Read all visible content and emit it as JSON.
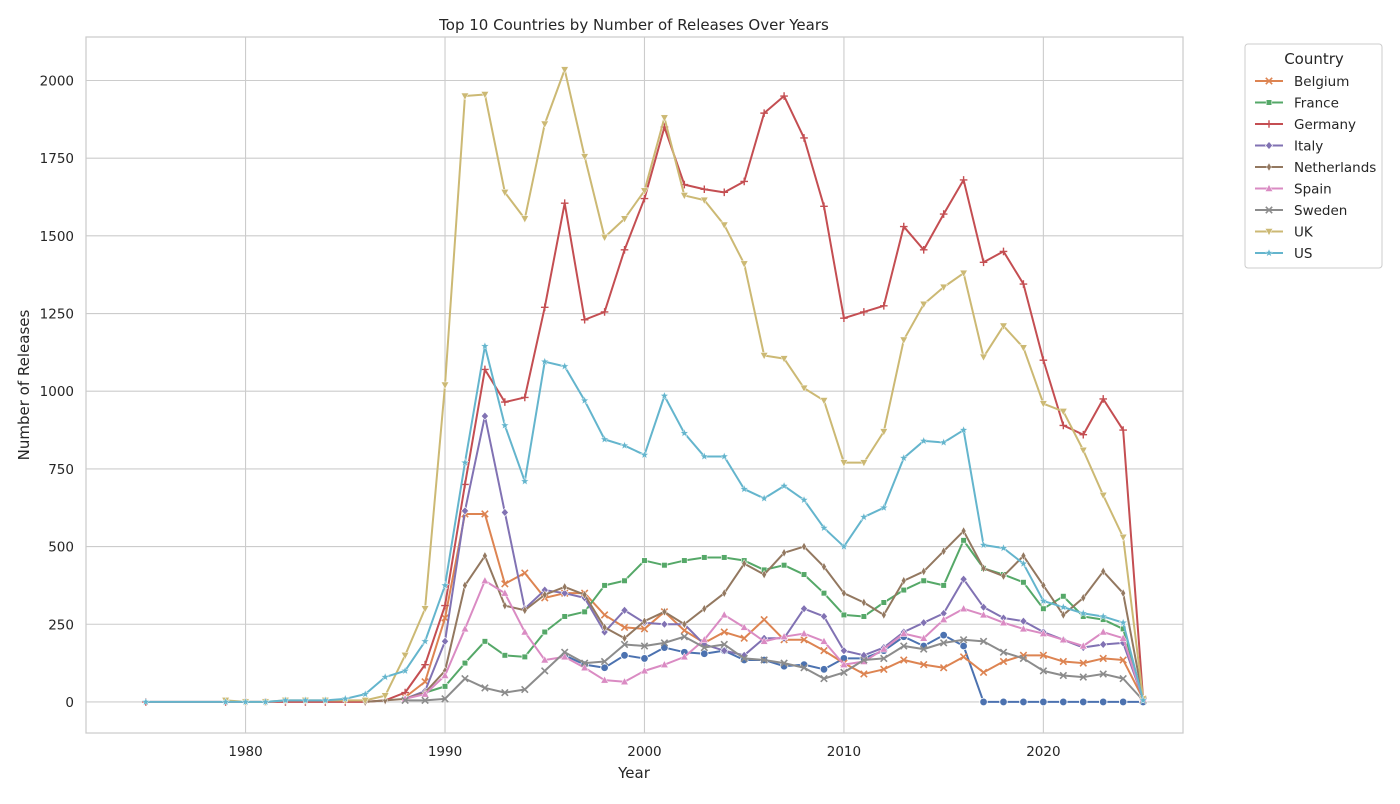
{
  "chart_data": {
    "type": "line",
    "title": "Top 10 Countries by Number of Releases Over Years",
    "xlabel": "Year",
    "ylabel": "Number of Releases",
    "xlim": [
      1972,
      2027
    ],
    "ylim": [
      -100,
      2140
    ],
    "xticks": [
      "1980",
      "1990",
      "2000",
      "2010",
      "2020"
    ],
    "yticks": [
      "0",
      "250",
      "500",
      "750",
      "1000",
      "1250",
      "1500",
      "1750",
      "2000"
    ],
    "grid": true,
    "legend_title": "Country",
    "legend_position": "outside-top-right",
    "series": [
      {
        "name": "",
        "color": "#4c72b0",
        "marker": "circle",
        "x": [
          1996,
          1997,
          1998,
          1999,
          2000,
          2001,
          2002,
          2003,
          2004,
          2005,
          2006,
          2007,
          2008,
          2009,
          2010,
          2011,
          2012,
          2013,
          2014,
          2015,
          2016,
          2017,
          2018,
          2019,
          2020,
          2021,
          2022,
          2023,
          2024,
          2025
        ],
        "values": [
          150,
          120,
          110,
          150,
          140,
          175,
          160,
          155,
          165,
          135,
          135,
          115,
          120,
          105,
          140,
          140,
          165,
          210,
          180,
          215,
          180,
          0,
          0,
          0,
          0,
          0,
          0,
          0,
          0,
          0
        ]
      },
      {
        "name": "Belgium",
        "color": "#dd8452",
        "marker": "x",
        "x": [
          1988,
          1989,
          1990,
          1991,
          1992,
          1993,
          1994,
          1995,
          1996,
          1997,
          1998,
          1999,
          2000,
          2001,
          2002,
          2003,
          2004,
          2005,
          2006,
          2007,
          2008,
          2009,
          2010,
          2011,
          2012,
          2013,
          2014,
          2015,
          2016,
          2017,
          2018,
          2019,
          2020,
          2021,
          2022,
          2023,
          2024,
          2025
        ],
        "values": [
          15,
          65,
          270,
          605,
          605,
          380,
          415,
          335,
          350,
          350,
          280,
          240,
          235,
          290,
          230,
          190,
          225,
          205,
          265,
          200,
          200,
          165,
          125,
          90,
          105,
          135,
          120,
          110,
          145,
          95,
          130,
          150,
          150,
          130,
          125,
          140,
          135,
          10
        ]
      },
      {
        "name": "France",
        "color": "#55a868",
        "marker": "square",
        "x": [
          1988,
          1989,
          1990,
          1991,
          1992,
          1993,
          1994,
          1995,
          1996,
          1997,
          1998,
          1999,
          2000,
          2001,
          2002,
          2003,
          2004,
          2005,
          2006,
          2007,
          2008,
          2009,
          2010,
          2011,
          2012,
          2013,
          2014,
          2015,
          2016,
          2017,
          2018,
          2019,
          2020,
          2021,
          2022,
          2023,
          2024,
          2025
        ],
        "values": [
          10,
          30,
          50,
          125,
          195,
          150,
          145,
          225,
          275,
          290,
          375,
          390,
          455,
          440,
          455,
          465,
          465,
          455,
          425,
          440,
          410,
          350,
          280,
          275,
          320,
          360,
          390,
          375,
          520,
          430,
          410,
          385,
          300,
          340,
          275,
          265,
          235,
          10
        ]
      },
      {
        "name": "Germany",
        "color": "#c44e52",
        "marker": "plus",
        "x": [
          1975,
          1979,
          1980,
          1981,
          1982,
          1983,
          1984,
          1985,
          1986,
          1987,
          1988,
          1989,
          1990,
          1991,
          1992,
          1993,
          1994,
          1995,
          1996,
          1997,
          1998,
          1999,
          2000,
          2001,
          2002,
          2003,
          2004,
          2005,
          2006,
          2007,
          2008,
          2009,
          2010,
          2011,
          2012,
          2013,
          2014,
          2015,
          2016,
          2017,
          2018,
          2019,
          2020,
          2021,
          2022,
          2023,
          2024,
          2025
        ],
        "values": [
          0,
          0,
          0,
          0,
          0,
          0,
          0,
          0,
          0,
          5,
          30,
          120,
          310,
          700,
          1070,
          965,
          980,
          1270,
          1605,
          1230,
          1255,
          1455,
          1620,
          1850,
          1665,
          1650,
          1640,
          1675,
          1895,
          1950,
          1815,
          1595,
          1235,
          1255,
          1275,
          1530,
          1455,
          1570,
          1680,
          1415,
          1450,
          1345,
          1100,
          890,
          860,
          975,
          875,
          10
        ]
      },
      {
        "name": "Italy",
        "color": "#8172b3",
        "marker": "diamond",
        "x": [
          1988,
          1989,
          1990,
          1991,
          1992,
          1993,
          1994,
          1995,
          1996,
          1997,
          1998,
          1999,
          2000,
          2001,
          2002,
          2003,
          2004,
          2005,
          2006,
          2007,
          2008,
          2009,
          2010,
          2011,
          2012,
          2013,
          2014,
          2015,
          2016,
          2017,
          2018,
          2019,
          2020,
          2021,
          2022,
          2023,
          2024,
          2025
        ],
        "values": [
          10,
          35,
          195,
          615,
          920,
          610,
          300,
          360,
          350,
          335,
          225,
          295,
          255,
          250,
          250,
          185,
          165,
          150,
          205,
          205,
          300,
          275,
          165,
          150,
          175,
          225,
          255,
          285,
          395,
          305,
          270,
          260,
          225,
          200,
          175,
          185,
          190,
          10
        ]
      },
      {
        "name": "Netherlands",
        "color": "#937860",
        "marker": "thin-diamond",
        "x": [
          1986,
          1987,
          1988,
          1989,
          1990,
          1991,
          1992,
          1993,
          1994,
          1995,
          1996,
          1997,
          1998,
          1999,
          2000,
          2001,
          2002,
          2003,
          2004,
          2005,
          2006,
          2007,
          2008,
          2009,
          2010,
          2011,
          2012,
          2013,
          2014,
          2015,
          2016,
          2017,
          2018,
          2019,
          2020,
          2021,
          2022,
          2023,
          2024,
          2025
        ],
        "values": [
          0,
          5,
          10,
          30,
          100,
          375,
          470,
          310,
          295,
          345,
          370,
          345,
          240,
          205,
          260,
          290,
          250,
          300,
          350,
          445,
          410,
          480,
          500,
          435,
          350,
          320,
          280,
          390,
          420,
          485,
          550,
          430,
          405,
          470,
          375,
          280,
          335,
          420,
          350,
          10
        ]
      },
      {
        "name": "Spain",
        "color": "#da8bc3",
        "marker": "triangle-up",
        "x": [
          1988,
          1989,
          1990,
          1991,
          1992,
          1993,
          1994,
          1995,
          1996,
          1997,
          1998,
          1999,
          2000,
          2001,
          2002,
          2003,
          2004,
          2005,
          2006,
          2007,
          2008,
          2009,
          2010,
          2011,
          2012,
          2013,
          2014,
          2015,
          2016,
          2017,
          2018,
          2019,
          2020,
          2021,
          2022,
          2023,
          2024,
          2025
        ],
        "values": [
          10,
          25,
          85,
          235,
          390,
          350,
          225,
          135,
          145,
          110,
          70,
          65,
          100,
          120,
          145,
          200,
          280,
          240,
          195,
          210,
          220,
          195,
          120,
          130,
          170,
          220,
          205,
          265,
          300,
          280,
          255,
          235,
          220,
          200,
          180,
          225,
          205,
          10
        ]
      },
      {
        "name": "Sweden",
        "color": "#8c8c8c",
        "marker": "x",
        "x": [
          1988,
          1989,
          1990,
          1991,
          1992,
          1993,
          1994,
          1995,
          1996,
          1997,
          1998,
          1999,
          2000,
          2001,
          2002,
          2003,
          2004,
          2005,
          2006,
          2007,
          2008,
          2009,
          2010,
          2011,
          2012,
          2013,
          2014,
          2015,
          2016,
          2017,
          2018,
          2019,
          2020,
          2021,
          2022,
          2023,
          2024,
          2025
        ],
        "values": [
          5,
          5,
          10,
          75,
          45,
          30,
          40,
          100,
          160,
          125,
          130,
          185,
          180,
          190,
          210,
          175,
          185,
          140,
          135,
          125,
          110,
          75,
          95,
          135,
          140,
          180,
          170,
          190,
          200,
          195,
          160,
          140,
          100,
          85,
          80,
          90,
          75,
          5
        ]
      },
      {
        "name": "UK",
        "color": "#ccb974",
        "marker": "triangle-down",
        "x": [
          1979,
          1980,
          1981,
          1982,
          1983,
          1984,
          1985,
          1986,
          1987,
          1988,
          1989,
          1990,
          1991,
          1992,
          1993,
          1994,
          1995,
          1996,
          1997,
          1998,
          1999,
          2000,
          2001,
          2002,
          2003,
          2004,
          2005,
          2006,
          2007,
          2008,
          2009,
          2010,
          2011,
          2012,
          2013,
          2014,
          2015,
          2016,
          2017,
          2018,
          2019,
          2020,
          2021,
          2022,
          2023,
          2024,
          2025
        ],
        "values": [
          5,
          0,
          0,
          5,
          5,
          5,
          5,
          5,
          20,
          150,
          300,
          1020,
          1950,
          1955,
          1640,
          1555,
          1860,
          2035,
          1755,
          1495,
          1555,
          1645,
          1880,
          1630,
          1615,
          1535,
          1410,
          1115,
          1105,
          1010,
          970,
          770,
          770,
          870,
          1165,
          1280,
          1335,
          1380,
          1110,
          1210,
          1140,
          960,
          935,
          810,
          665,
          530,
          10
        ]
      },
      {
        "name": "US",
        "color": "#64b5cd",
        "marker": "star",
        "x": [
          1975,
          1979,
          1980,
          1981,
          1982,
          1983,
          1984,
          1985,
          1986,
          1987,
          1988,
          1989,
          1990,
          1991,
          1992,
          1993,
          1994,
          1995,
          1996,
          1997,
          1998,
          1999,
          2000,
          2001,
          2002,
          2003,
          2004,
          2005,
          2006,
          2007,
          2008,
          2009,
          2010,
          2011,
          2012,
          2013,
          2014,
          2015,
          2016,
          2017,
          2018,
          2019,
          2020,
          2021,
          2022,
          2023,
          2024,
          2025
        ],
        "values": [
          0,
          0,
          0,
          0,
          5,
          5,
          5,
          10,
          25,
          80,
          100,
          195,
          375,
          770,
          1145,
          890,
          710,
          1095,
          1080,
          970,
          845,
          825,
          795,
          985,
          865,
          790,
          790,
          685,
          655,
          695,
          650,
          560,
          500,
          595,
          625,
          785,
          840,
          835,
          875,
          505,
          495,
          445,
          325,
          305,
          285,
          275,
          255,
          5
        ]
      }
    ]
  }
}
